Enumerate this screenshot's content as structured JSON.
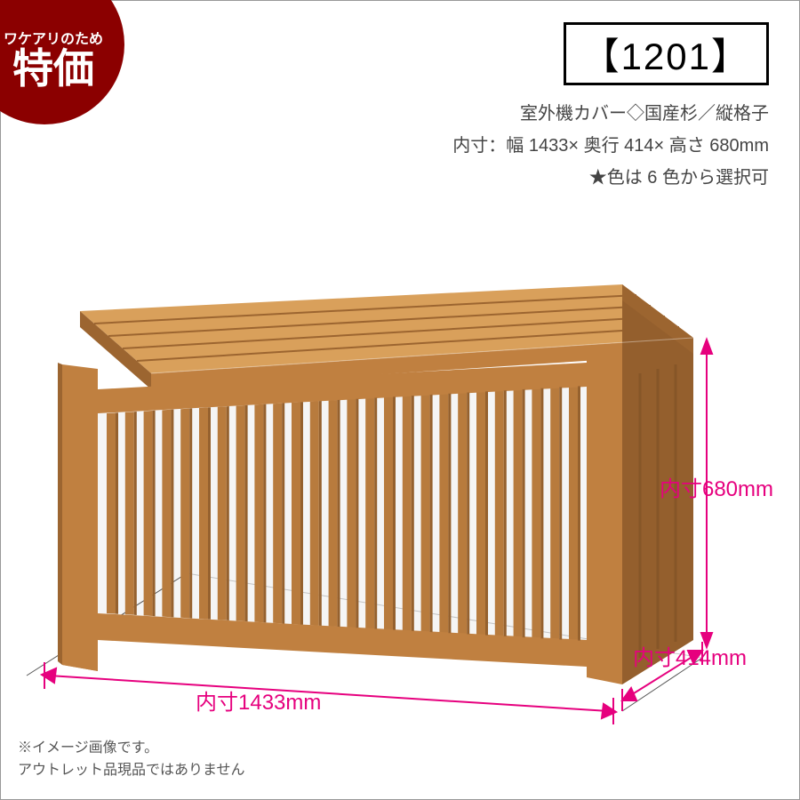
{
  "badge": {
    "line1": "ワケアリのため",
    "line2": "特価",
    "bg_color": "#8b0000",
    "text_color": "#ffffff"
  },
  "model": {
    "label": "【1201】",
    "border_color": "#000000",
    "fontsize": 42
  },
  "description": {
    "line1": "室外機カバー◇国産杉／縦格子",
    "line2": "内寸：幅 1433× 奥行 414× 高さ 680mm",
    "line3": "★色は 6 色から選択可",
    "fontsize": 20,
    "color": "#444444"
  },
  "dimensions": {
    "height": "内寸680mm",
    "depth": "内寸414mm",
    "width": "内寸1433mm",
    "label_color": "#e6007e",
    "line_color": "#e6007e",
    "fontsize": 24
  },
  "footnote": {
    "line1": "※イメージ画像です。",
    "line2": "アウトレット品現品ではありません",
    "fontsize": 16,
    "color": "#555555"
  },
  "product": {
    "type": "3d-render",
    "wood_light": "#d9a05b",
    "wood_mid": "#c08040",
    "wood_dark": "#9c6530",
    "wood_shadow": "#7a4f24",
    "slat_count": 26,
    "top_plank_count": 5,
    "floor_line_color": "#555555"
  }
}
